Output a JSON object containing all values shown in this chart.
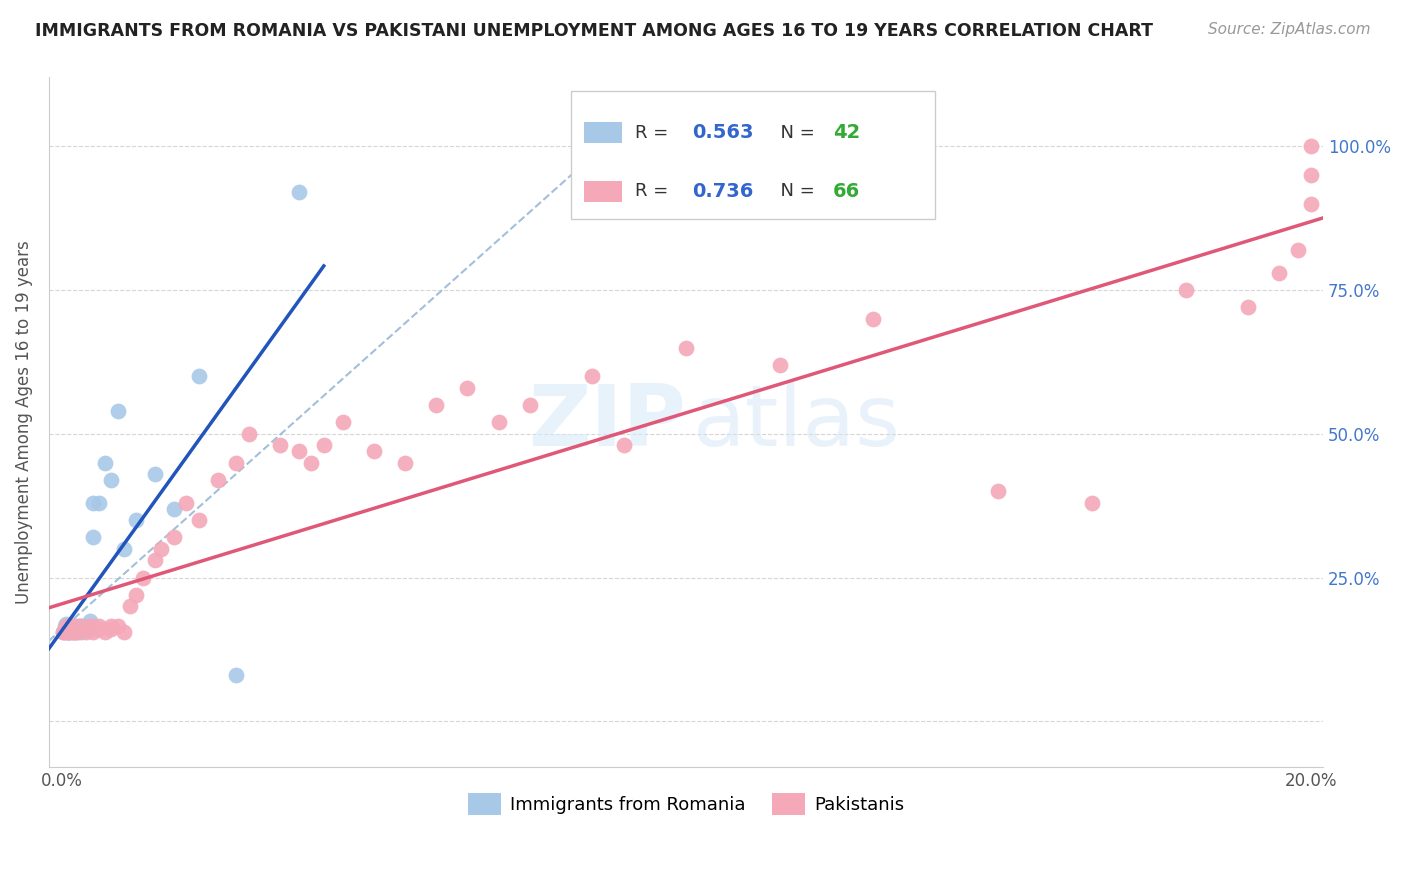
{
  "title": "IMMIGRANTS FROM ROMANIA VS PAKISTANI UNEMPLOYMENT AMONG AGES 16 TO 19 YEARS CORRELATION CHART",
  "source": "Source: ZipAtlas.com",
  "ylabel": "Unemployment Among Ages 16 to 19 years",
  "watermark_zip": "ZIP",
  "watermark_atlas": "atlas",
  "legend_labels": [
    "Immigrants from Romania",
    "Pakistanis"
  ],
  "romania_color": "#a8c8e8",
  "pakistan_color": "#f4a8b8",
  "romania_line_color": "#2255bb",
  "pakistan_line_color": "#e05878",
  "dashed_line_color": "#99b8d8",
  "r_romania": "0.563",
  "n_romania": "42",
  "r_pakistan": "0.736",
  "n_pakistan": "66",
  "xlim": [
    -0.002,
    0.202
  ],
  "ylim": [
    -0.08,
    1.12
  ],
  "yticks": [
    0.0,
    0.25,
    0.5,
    0.75,
    1.0
  ],
  "xticks": [
    0.0,
    0.05,
    0.1,
    0.15,
    0.2
  ],
  "background_color": "#ffffff",
  "grid_color": "#cccccc",
  "title_color": "#222222",
  "axis_label_color": "#555555",
  "tick_color": "#555555",
  "right_tick_color": "#4477cc",
  "legend_r_color": "#3366cc",
  "legend_n_color": "#33aa33",
  "romania_x": [
    0.0003,
    0.0005,
    0.0006,
    0.0007,
    0.0008,
    0.0009,
    0.001,
    0.001,
    0.001,
    0.0012,
    0.0013,
    0.0015,
    0.0015,
    0.0016,
    0.0017,
    0.0018,
    0.002,
    0.002,
    0.002,
    0.0022,
    0.0025,
    0.0025,
    0.003,
    0.003,
    0.0032,
    0.0035,
    0.004,
    0.004,
    0.0045,
    0.005,
    0.005,
    0.006,
    0.007,
    0.008,
    0.009,
    0.01,
    0.012,
    0.015,
    0.018,
    0.022,
    0.028,
    0.038
  ],
  "romania_y": [
    0.155,
    0.16,
    0.165,
    0.155,
    0.17,
    0.16,
    0.155,
    0.16,
    0.165,
    0.155,
    0.16,
    0.155,
    0.16,
    0.165,
    0.16,
    0.155,
    0.155,
    0.16,
    0.165,
    0.16,
    0.155,
    0.165,
    0.16,
    0.165,
    0.155,
    0.165,
    0.16,
    0.165,
    0.175,
    0.32,
    0.38,
    0.38,
    0.45,
    0.42,
    0.54,
    0.3,
    0.35,
    0.43,
    0.37,
    0.6,
    0.08,
    0.92
  ],
  "pakistan_x": [
    0.0003,
    0.0005,
    0.0006,
    0.0007,
    0.0008,
    0.001,
    0.001,
    0.001,
    0.0012,
    0.0015,
    0.0016,
    0.002,
    0.002,
    0.002,
    0.0025,
    0.003,
    0.003,
    0.0035,
    0.004,
    0.0045,
    0.005,
    0.005,
    0.005,
    0.006,
    0.006,
    0.007,
    0.008,
    0.008,
    0.009,
    0.01,
    0.011,
    0.012,
    0.013,
    0.015,
    0.016,
    0.018,
    0.02,
    0.022,
    0.025,
    0.028,
    0.03,
    0.035,
    0.038,
    0.04,
    0.042,
    0.045,
    0.05,
    0.055,
    0.06,
    0.065,
    0.07,
    0.075,
    0.085,
    0.09,
    0.1,
    0.115,
    0.13,
    0.15,
    0.165,
    0.18,
    0.19,
    0.195,
    0.198,
    0.2,
    0.2,
    0.2
  ],
  "pakistan_y": [
    0.155,
    0.16,
    0.155,
    0.16,
    0.165,
    0.155,
    0.16,
    0.165,
    0.155,
    0.16,
    0.165,
    0.155,
    0.16,
    0.165,
    0.155,
    0.16,
    0.165,
    0.16,
    0.155,
    0.165,
    0.155,
    0.16,
    0.165,
    0.16,
    0.165,
    0.155,
    0.16,
    0.165,
    0.165,
    0.155,
    0.2,
    0.22,
    0.25,
    0.28,
    0.3,
    0.32,
    0.38,
    0.35,
    0.42,
    0.45,
    0.5,
    0.48,
    0.47,
    0.45,
    0.48,
    0.52,
    0.47,
    0.45,
    0.55,
    0.58,
    0.52,
    0.55,
    0.6,
    0.48,
    0.65,
    0.62,
    0.7,
    0.4,
    0.38,
    0.75,
    0.72,
    0.78,
    0.82,
    0.9,
    0.95,
    1.0
  ]
}
